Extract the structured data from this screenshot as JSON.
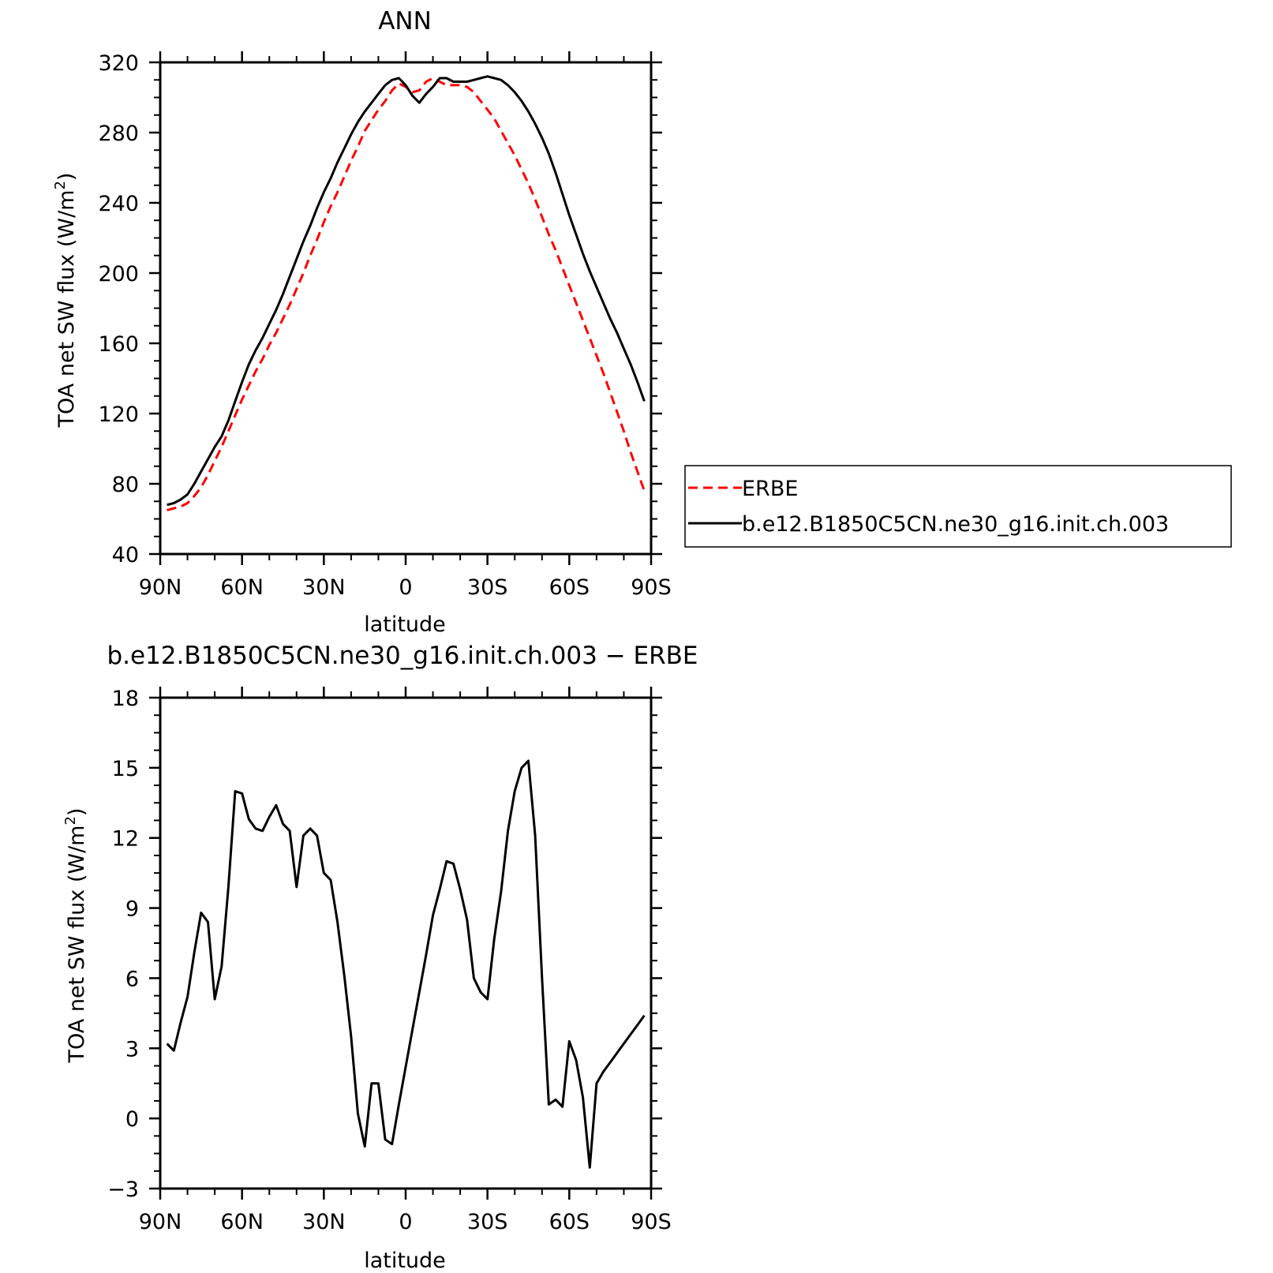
{
  "chart_data": [
    {
      "type": "line",
      "title": "ANN",
      "xlabel": "latitude",
      "ylabel": "TOA net SW flux (W/m²)",
      "ylabel_parts": {
        "main": "TOA net SW flux (W/m",
        "sup": "2",
        "end": ")"
      },
      "xlim": [
        90,
        -90
      ],
      "ylim": [
        40,
        320
      ],
      "xticks": [
        90,
        60,
        30,
        0,
        -30,
        -60,
        -90
      ],
      "xtick_labels": [
        "90N",
        "60N",
        "30N",
        "0",
        "30S",
        "60S",
        "90S"
      ],
      "yticks": [
        40,
        80,
        120,
        160,
        200,
        240,
        280,
        320
      ],
      "ytick_labels": [
        "40",
        "80",
        "120",
        "160",
        "200",
        "240",
        "280",
        "320"
      ],
      "legend_position": "right",
      "series": [
        {
          "name": "ERBE",
          "color": "#ff0000",
          "dash": true,
          "x": [
            87.5,
            85,
            82.5,
            80,
            77.5,
            75,
            72.5,
            70,
            67.5,
            65,
            62.5,
            60,
            57.5,
            55,
            52.5,
            50,
            47.5,
            45,
            42.5,
            40,
            37.5,
            35,
            32.5,
            30,
            27.5,
            25,
            22.5,
            20,
            17.5,
            15,
            12.5,
            10,
            7.5,
            5,
            2.5,
            0,
            -2.5,
            -5,
            -7.5,
            -10,
            -12.5,
            -15,
            -17.5,
            -20,
            -22.5,
            -25,
            -27.5,
            -30,
            -32.5,
            -35,
            -37.5,
            -40,
            -42.5,
            -45,
            -47.5,
            -50,
            -52.5,
            -55,
            -57.5,
            -60,
            -62.5,
            -65,
            -67.5,
            -70,
            -72.5,
            -75,
            -77.5,
            -80,
            -82.5,
            -85,
            -87.5
          ],
          "y": [
            65,
            66,
            67,
            69,
            73,
            78,
            85,
            93,
            101,
            110,
            119,
            128,
            136,
            144,
            151,
            159,
            166,
            174,
            182,
            191,
            200,
            210,
            219,
            229,
            238,
            246,
            255,
            264,
            272,
            281,
            287,
            293,
            298,
            304,
            308,
            306,
            303,
            304,
            309,
            311,
            309,
            307,
            307,
            307,
            306,
            303,
            298,
            293,
            288,
            281,
            274,
            267,
            259,
            251,
            242,
            232,
            222,
            213,
            203,
            193,
            183,
            173,
            163,
            153,
            143,
            132,
            121,
            110,
            98,
            87,
            76
          ]
        },
        {
          "name": "b.e12.B1850C5CN.ne30_g16.init.ch.003",
          "color": "#000000",
          "dash": false,
          "x": [
            87.5,
            85,
            82.5,
            80,
            77.5,
            75,
            72.5,
            70,
            67.5,
            65,
            62.5,
            60,
            57.5,
            55,
            52.5,
            50,
            47.5,
            45,
            42.5,
            40,
            37.5,
            35,
            32.5,
            30,
            27.5,
            25,
            22.5,
            20,
            17.5,
            15,
            12.5,
            10,
            7.5,
            5,
            2.5,
            0,
            -2.5,
            -5,
            -7.5,
            -10,
            -12.5,
            -15,
            -17.5,
            -20,
            -22.5,
            -25,
            -27.5,
            -30,
            -32.5,
            -35,
            -37.5,
            -40,
            -42.5,
            -45,
            -47.5,
            -50,
            -52.5,
            -55,
            -57.5,
            -60,
            -62.5,
            -65,
            -67.5,
            -70,
            -72.5,
            -75,
            -77.5,
            -80,
            -82.5,
            -85,
            -87.5
          ],
          "y": [
            68,
            69,
            71,
            74,
            80,
            87,
            94,
            101,
            107,
            116,
            127,
            138,
            148,
            156,
            163,
            171,
            179,
            188,
            198,
            208,
            218,
            227,
            237,
            246,
            254,
            263,
            271,
            279,
            286,
            292,
            297,
            302,
            307,
            310,
            311,
            307,
            301,
            297,
            302,
            306,
            311,
            311,
            309,
            309,
            309,
            310,
            311,
            312,
            311,
            310,
            307,
            303,
            298,
            292,
            285,
            277,
            268,
            257,
            245,
            233,
            222,
            211,
            201,
            192,
            183,
            174,
            166,
            157,
            148,
            138,
            127
          ]
        }
      ]
    },
    {
      "type": "line",
      "title": "b.e12.B1850C5CN.ne30_g16.init.ch.003 − ERBE",
      "xlabel": "latitude",
      "ylabel": "TOA net SW flux (W/m²)",
      "ylabel_parts": {
        "main": "TOA net SW flux (W/m",
        "sup": "2",
        "end": ")"
      },
      "xlim": [
        90,
        -90
      ],
      "ylim": [
        -3,
        18
      ],
      "xticks": [
        90,
        60,
        30,
        0,
        -30,
        -60,
        -90
      ],
      "xtick_labels": [
        "90N",
        "60N",
        "30N",
        "0",
        "30S",
        "60S",
        "90S"
      ],
      "yticks": [
        -3,
        0,
        3,
        6,
        9,
        12,
        15,
        18
      ],
      "ytick_labels": [
        "−3",
        "0",
        "3",
        "6",
        "9",
        "12",
        "15",
        "18"
      ],
      "series": [
        {
          "color": "#000000",
          "dash": false,
          "x": [
            87.5,
            85,
            82.5,
            80,
            77.5,
            75,
            72.5,
            70,
            67.5,
            65,
            62.5,
            60,
            57.5,
            55,
            52.5,
            50,
            47.5,
            45,
            42.5,
            40,
            37.5,
            35,
            32.5,
            30,
            27.5,
            25,
            22.5,
            20,
            17.5,
            15,
            12.5,
            10,
            7.5,
            5,
            2.5,
            0,
            -2.5,
            -5,
            -7.5,
            -10,
            -12.5,
            -15,
            -17.5,
            -20,
            -22.5,
            -25,
            -27.5,
            -30,
            -32.5,
            -35,
            -37.5,
            -40,
            -42.5,
            -45,
            -47.5,
            -50,
            -52.5,
            -55,
            -57.5,
            -60,
            -62.5,
            -65,
            -67.5,
            -70,
            -72.5,
            -75,
            -77.5,
            -80,
            -82.5,
            -85,
            -87.5
          ],
          "y": [
            3.2,
            2.9,
            4.1,
            5.2,
            7.1,
            8.8,
            8.4,
            5.1,
            6.5,
            9.9,
            14.0,
            13.9,
            12.8,
            12.4,
            12.3,
            12.9,
            13.4,
            12.6,
            12.3,
            9.9,
            12.1,
            12.4,
            12.1,
            10.5,
            10.2,
            8.4,
            6.1,
            3.5,
            0.2,
            -1.2,
            1.5,
            1.5,
            -0.9,
            -1.1,
            0.6,
            2.2,
            3.8,
            5.4,
            7.0,
            8.7,
            9.8,
            11.0,
            10.9,
            9.8,
            8.5,
            6.0,
            5.4,
            5.1,
            7.7,
            9.7,
            12.3,
            14.0,
            15.0,
            15.3,
            12.1,
            6.0,
            0.6,
            0.8,
            0.5,
            3.3,
            2.5,
            0.9,
            -2.1,
            1.5,
            2.0,
            2.4,
            2.8,
            3.2,
            3.6,
            4.0,
            4.4
          ]
        }
      ]
    }
  ]
}
